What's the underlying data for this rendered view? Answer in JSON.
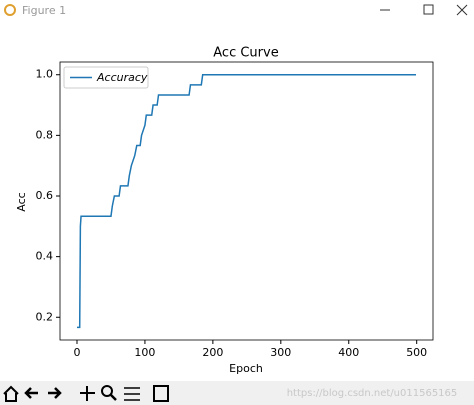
{
  "window": {
    "title": "Figure 1",
    "watermark": "https://blog.csdn.net/u011565165"
  },
  "chart_data": {
    "type": "line",
    "title": "Acc Curve",
    "xlabel": "Epoch",
    "ylabel": "Acc",
    "x": [
      0,
      4,
      5,
      6,
      50,
      52,
      55,
      62,
      64,
      75,
      77,
      80,
      85,
      88,
      93,
      95,
      100,
      102,
      110,
      112,
      118,
      120,
      165,
      167,
      183,
      185,
      499
    ],
    "series": [
      {
        "name": "Accuracy",
        "color": "#1f77b4",
        "values": [
          0.1667,
          0.1667,
          0.5,
          0.5333,
          0.5333,
          0.5667,
          0.6,
          0.6,
          0.6333,
          0.6333,
          0.6667,
          0.7,
          0.7333,
          0.7667,
          0.7667,
          0.8,
          0.8333,
          0.8667,
          0.8667,
          0.9,
          0.9,
          0.9333,
          0.9333,
          0.9667,
          0.9667,
          1.0,
          1.0
        ]
      }
    ],
    "xlim": [
      -25,
      524
    ],
    "ylim": [
      0.125,
      1.042
    ],
    "xticks": [
      0,
      100,
      200,
      300,
      400,
      500
    ],
    "yticks": [
      0.2,
      0.4,
      0.6,
      0.8,
      {
        "value": 1,
        "label": "1.0"
      }
    ],
    "legend": "upper left"
  }
}
